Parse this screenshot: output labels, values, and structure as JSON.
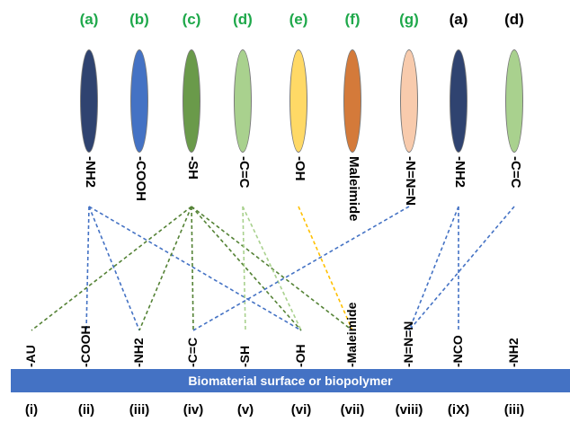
{
  "top_groups": [
    {
      "label": "(a)",
      "label_color": "#1ea84a",
      "color": "#2f4370",
      "group": "-NH2"
    },
    {
      "label": "(b)",
      "label_color": "#1ea84a",
      "color": "#4472c4",
      "group": "-COOH"
    },
    {
      "label": "(c)",
      "label_color": "#1ea84a",
      "color": "#6a9a4a",
      "group": "-SH"
    },
    {
      "label": "(d)",
      "label_color": "#1ea84a",
      "color": "#a9d18e",
      "group": "-C=C"
    },
    {
      "label": "(e)",
      "label_color": "#1ea84a",
      "color": "#ffd966",
      "group": "-OH"
    },
    {
      "label": "(f)",
      "label_color": "#1ea84a",
      "color": "#d47a3a",
      "group": "Maleimide"
    },
    {
      "label": "(g)",
      "label_color": "#1ea84a",
      "color": "#f8cbad",
      "group": "-N=N=N"
    },
    {
      "label": "(a)",
      "label_color": "#000000",
      "color": "#2f4370",
      "group": "-NH2"
    },
    {
      "label": "(d)",
      "label_color": "#000000",
      "color": "#a9d18e",
      "group": "-C=C"
    }
  ],
  "surface_groups": [
    {
      "label": "(i)",
      "group": "-AU"
    },
    {
      "label": "(ii)",
      "group": "-COOH"
    },
    {
      "label": "(iii)",
      "group": "-NH2"
    },
    {
      "label": "(iv)",
      "group": "-C=C"
    },
    {
      "label": "(v)",
      "group": "-SH"
    },
    {
      "label": "(vi)",
      "group": "-OH"
    },
    {
      "label": "(vii)",
      "group": "-Maleimide"
    },
    {
      "label": "(viii)",
      "group": "-N=N=N"
    },
    {
      "label": "(iX)",
      "group": "-NCO"
    },
    {
      "label": "(iii)",
      "group": "-NH2"
    }
  ],
  "surface_bar_label": "Biomaterial surface or biopolymer",
  "connections": [
    {
      "top": 0,
      "bottom": 1,
      "color": "#4472c4"
    },
    {
      "top": 0,
      "bottom": 2,
      "color": "#4472c4"
    },
    {
      "top": 0,
      "bottom": 5,
      "color": "#4472c4"
    },
    {
      "top": 2,
      "bottom": 0,
      "color": "#548235"
    },
    {
      "top": 2,
      "bottom": 2,
      "color": "#548235"
    },
    {
      "top": 2,
      "bottom": 3,
      "color": "#548235"
    },
    {
      "top": 2,
      "bottom": 5,
      "color": "#548235"
    },
    {
      "top": 2,
      "bottom": 6,
      "color": "#548235"
    },
    {
      "top": 3,
      "bottom": 4,
      "color": "#a9d18e"
    },
    {
      "top": 3,
      "bottom": 5,
      "color": "#a9d18e"
    },
    {
      "top": 4,
      "bottom": 6,
      "color": "#ffc000"
    },
    {
      "top": 6,
      "bottom": 3,
      "color": "#4472c4"
    },
    {
      "top": 7,
      "bottom": 7,
      "color": "#4472c4"
    },
    {
      "top": 7,
      "bottom": 8,
      "color": "#4472c4"
    },
    {
      "top": 8,
      "bottom": 7,
      "color": "#4472c4"
    }
  ]
}
